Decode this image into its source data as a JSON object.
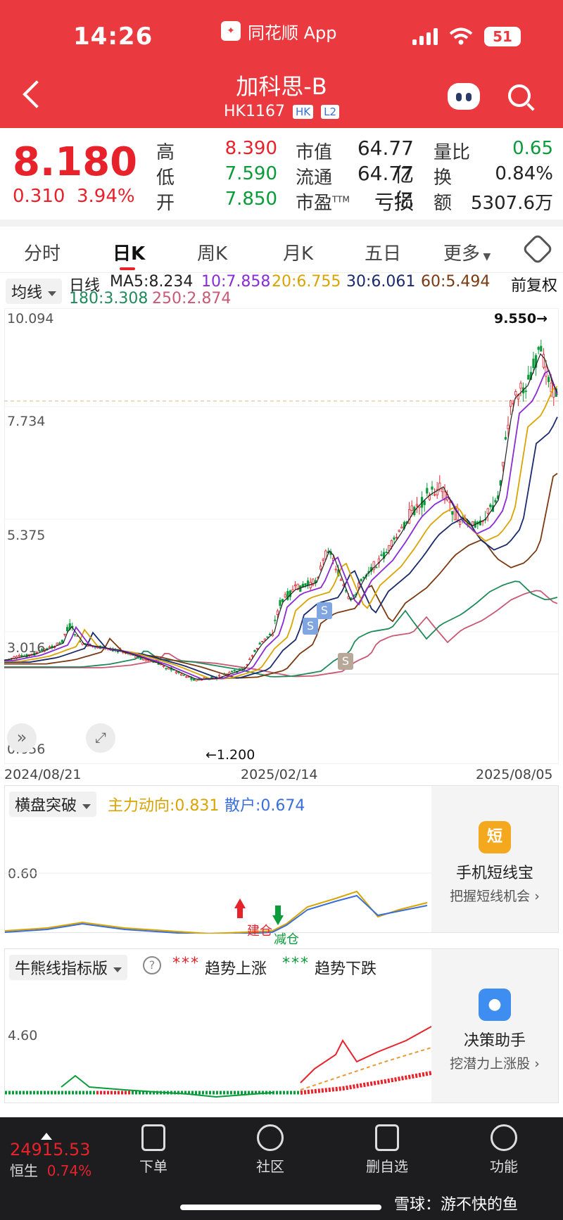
{
  "status": {
    "time": "14:26",
    "app_name": "同花顺 App",
    "battery": "51"
  },
  "header": {
    "title": "加科思-B",
    "code": "HK1167",
    "tag_hk": "HK",
    "tag_l2": "L2"
  },
  "quote": {
    "price": "8.180",
    "change": "0.310",
    "change_pct": "3.94%",
    "high_label": "高",
    "high": "8.390",
    "low_label": "低",
    "low": "7.590",
    "open_label": "开",
    "open": "7.850",
    "mcap_label": "市值",
    "mcap": "64.77亿",
    "float_label": "流通",
    "float": "64.77亿",
    "pe_label": "市盈",
    "pe_sup": "TTM",
    "pe": "亏损",
    "vr_label": "量比",
    "vr": "0.65",
    "turn_label": "换",
    "turn": "0.84%",
    "amt_label": "额",
    "amt": "5307.6万"
  },
  "tabs": [
    "分时",
    "日K",
    "周K",
    "月K",
    "五日",
    "更多"
  ],
  "ma": {
    "selector": "均线",
    "period": "日线",
    "ma5": "MA5:8.234",
    "ma10": "10:7.858",
    "ma20": "20:6.755",
    "ma30": "30:6.061",
    "ma60": "60:5.494",
    "ma180": "180:3.308",
    "ma250": "250:2.874",
    "adjust": "前复权",
    "colors": {
      "ma5": "#222222",
      "ma10": "#8a2bd6",
      "ma20": "#d9a400",
      "ma30": "#1a2a6c",
      "ma60": "#7a3a12",
      "ma180": "#1f8a5a",
      "ma250": "#c85a75"
    }
  },
  "chart": {
    "y_labels": [
      "10.094",
      "7.734",
      "5.375",
      "3.016",
      "0.656"
    ],
    "high_mark": "9.550→",
    "low_mark": "←1.200",
    "x_labels": [
      "2024/08/21",
      "2025/02/14",
      "2025/08/05"
    ],
    "signals": [
      "S",
      "S",
      "S"
    ]
  },
  "ind1": {
    "selector": "横盘突破",
    "main_label": "主力动向:0.831",
    "retail_label": "散户:0.674",
    "y_label": "0.60",
    "build": "建仓",
    "reduce": "减仓",
    "ad_title": "手机短线宝",
    "ad_sub": "把握短线机会 ›",
    "ad_icon": "短"
  },
  "ind2": {
    "selector": "牛熊线指标版",
    "help": "?",
    "up_label": "趋势上涨",
    "down_label": "趋势下跌",
    "y_label": "4.60",
    "ad_title": "决策助手",
    "ad_sub": "挖潜力上涨股 ›"
  },
  "nav": {
    "index_value": "24915.53",
    "index_name": "恒生",
    "index_pct": "0.74%",
    "items": [
      "下单",
      "社区",
      "删自选",
      "功能"
    ]
  },
  "watermark": "雪球：游不快的鱼"
}
